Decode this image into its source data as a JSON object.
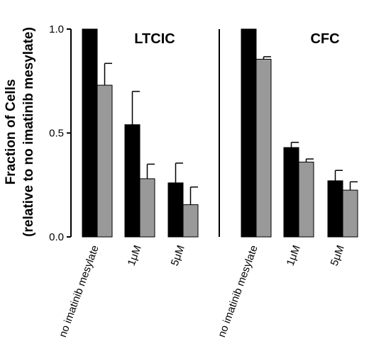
{
  "chart_data": {
    "type": "bar",
    "ylabel": "Fraction of Cells",
    "ylabel_sub": "(relative to no imatinib mesylate)",
    "ylim": [
      0,
      1.0
    ],
    "yticks": [
      "0.0",
      "0.5",
      "1.0"
    ],
    "colors": [
      "#000000",
      "#999999"
    ],
    "panels": [
      {
        "title": "LTCIC",
        "categories": [
          "no imatinib mesylate",
          "1μM",
          "5μM"
        ],
        "series": [
          {
            "values": [
              1.0,
              0.54,
              0.26
            ],
            "errors": [
              0,
              0.16,
              0.095
            ]
          },
          {
            "values": [
              0.73,
              0.28,
              0.155
            ],
            "errors": [
              0.105,
              0.07,
              0.085
            ]
          }
        ]
      },
      {
        "title": "CFC",
        "categories": [
          "no imatinib mesylate",
          "1μM",
          "5μM"
        ],
        "series": [
          {
            "values": [
              1.0,
              0.43,
              0.27
            ],
            "errors": [
              0,
              0.025,
              0.05
            ]
          },
          {
            "values": [
              0.855,
              0.36,
              0.225
            ],
            "errors": [
              0.012,
              0.015,
              0.04
            ]
          }
        ]
      }
    ]
  }
}
